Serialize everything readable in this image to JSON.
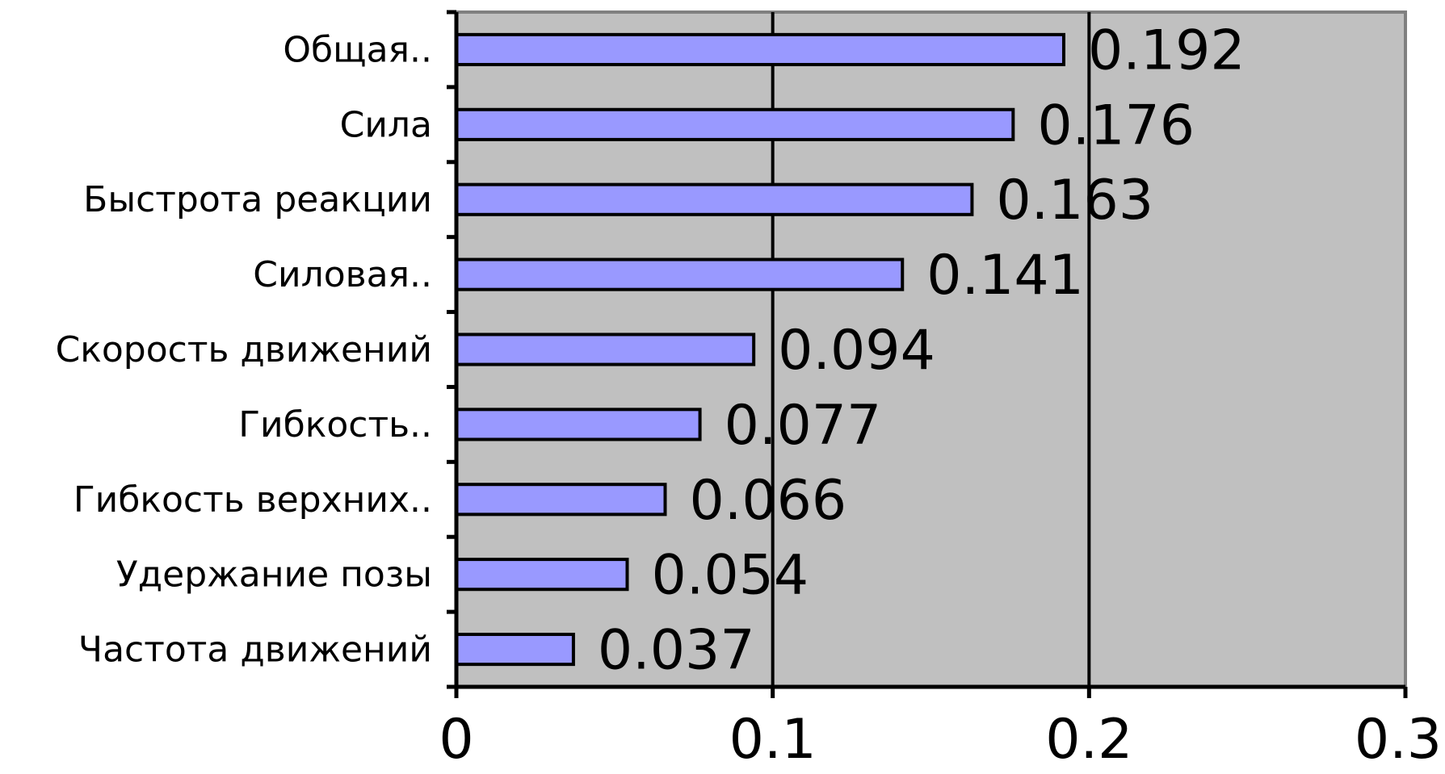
{
  "chart_data": {
    "type": "bar",
    "orientation": "horizontal",
    "title": "",
    "xlabel": "",
    "ylabel": "",
    "categories": [
      "Общая..",
      "Сила",
      "Быстрота реакции",
      "Силовая..",
      "Скорость движений",
      "Гибкость..",
      "Гибкость верхних..",
      "Удержание позы",
      "Частота движений"
    ],
    "values": [
      0.192,
      0.176,
      0.163,
      0.141,
      0.094,
      0.077,
      0.066,
      0.054,
      0.037
    ],
    "value_labels": [
      "0.192",
      "0.176",
      "0.163",
      "0.141",
      "0.094",
      "0.077",
      "0.066",
      "0.054",
      "0.037"
    ],
    "xlim": [
      0,
      0.3
    ],
    "xticks": [
      0,
      0.1,
      0.2,
      0.3
    ],
    "xtick_labels": [
      "0",
      "0.1",
      "0.2",
      "0.3"
    ],
    "grid": "vertical major gridlines",
    "legend": "none",
    "colors": {
      "bar_fill": "#9999ff",
      "bar_stroke": "#000000",
      "plot_background": "#c0c0c0",
      "grid": "#000000"
    }
  }
}
